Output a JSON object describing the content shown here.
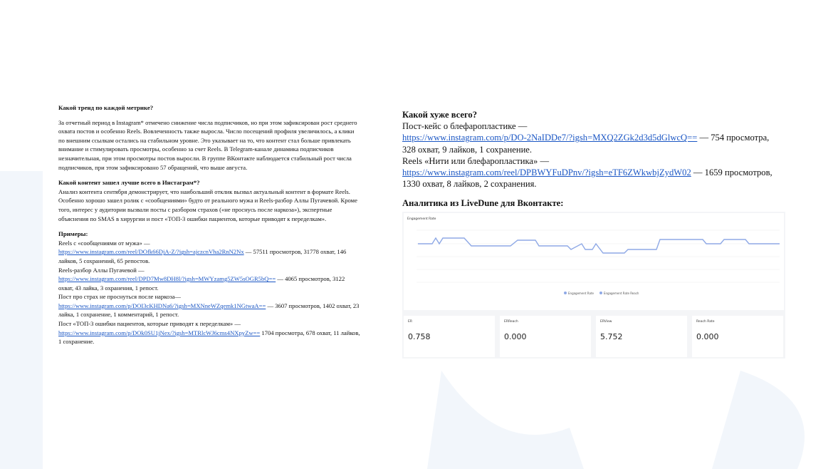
{
  "left": {
    "trend_heading": "Какой тренд по каждой метрике?",
    "trend_text": "За отчетный период в Instagram* отмечено снижение числа подписчиков, но при этом зафиксирован рост среднего охвата постов и особенно Reels. Вовлеченность также выросла. Число посещений профиля увеличилось, а клики по внешним ссылкам остались на стабильном уровне. Это указывает на то, что контент стал больше привлекать внимание и стимулировать просмотры, особенно за счет Reels. В Telegram-канале динамика подписчиков незначительная, при этом просмотры постов выросли. В группе ВКонтакте наблюдается стабильный рост числа подписчиков, при этом зафиксировано 57 обращений, что выше августа.",
    "best_heading": "Какой контент зашел лучше всего в Инстаграм*?",
    "best_text": "Анализ контента сентября демонстрирует, что наибольший отклик вызвал актуальный контент в формате Reels. Особенно хорошо зашел ролик с «сообщениями» будто от реального мужа и Reels-разбор Аллы Пугачевой. Кроме того, интерес у аудитории вызвали посты с разбором страхов («не проснусь после наркоза»), экспертные объяснения по SMAS в хирургии и пост «ТОП-3 ошибки пациентов, которые приводят к переделкам».",
    "examples_heading": "Примеры:",
    "examples": [
      {
        "title": "Reels с «сообщениями от мужа» —",
        "url": "https://www.instagram.com/reel/DOfk66DjA-Z/?igsh=ajczcnVha2RnN2Nx",
        "stats": " — 57511 просмотров, 31778 охват, 146 лайков, 5 сохранений, 65 репостов."
      },
      {
        "title": "Reels-разбор Аллы Пугачевой —",
        "url": "https://www.instagram.com/reel/DPD7Mw8DH8l/?igsh=MWYzamg5ZW5sOGR5bQ==",
        "stats": " — 4065 просмотров, 3122 охват, 43 лайка, 3 охранения, 1 репост."
      },
      {
        "title": "Пост про страх не проснуться после наркоза—",
        "url": "https://www.instagram.com/p/DOI3cKHDNa6/?igsh=MXNneWZqemk1NGtwaA==",
        "stats": " — 3607 просмотров, 1402 охват, 23 лайка, 1 сохранение, 1 комментарий, 1 репост."
      },
      {
        "title": "Пост «ТОП-3 ошибки пациентов, которые приводят к переделкам» —",
        "url": "https://www.instagram.com/p/DOk0SU1jNex/?igsh=MTRlcWJ6cms4NXpyZw==",
        "stats": " 1704 просмотра, 678 охват, 11 лайков, 1 сохранение."
      }
    ]
  },
  "right": {
    "worst_heading": "Какой хуже всего?",
    "worst": [
      {
        "title": "Пост-кейс о блефаропластике —",
        "url": "https://www.instagram.com/p/DO-2NaIDDe7/?igsh=MXQ2ZGk2d3d5dGlwcQ==",
        "stats": " — 754 просмотра, 328 охват, 9 лайков, 1 сохранение."
      },
      {
        "title": "Reels «Нити или блефаропластика» —",
        "url": "https://www.instagram.com/reel/DPBWYFuDPnv/?igsh=eTF6ZWkwbjZydW02",
        "stats": " — 1659 просмотров, 1330 охват, 8 лайков, 2 сохранения."
      }
    ],
    "analytics_heading": "Аналитика из LiveDune для Вконтакте:",
    "screenshot": {
      "chart_title": "Engagement Rate",
      "legend": [
        "Engagement Rate",
        "Engagement Rate Reach"
      ],
      "cards": [
        {
          "name": "ER",
          "value": "0.758"
        },
        {
          "name": "ERReach",
          "value": "0.000"
        },
        {
          "name": "ERView",
          "value": "5.752"
        },
        {
          "name": "Reach Rate",
          "value": "0.000"
        }
      ]
    }
  }
}
